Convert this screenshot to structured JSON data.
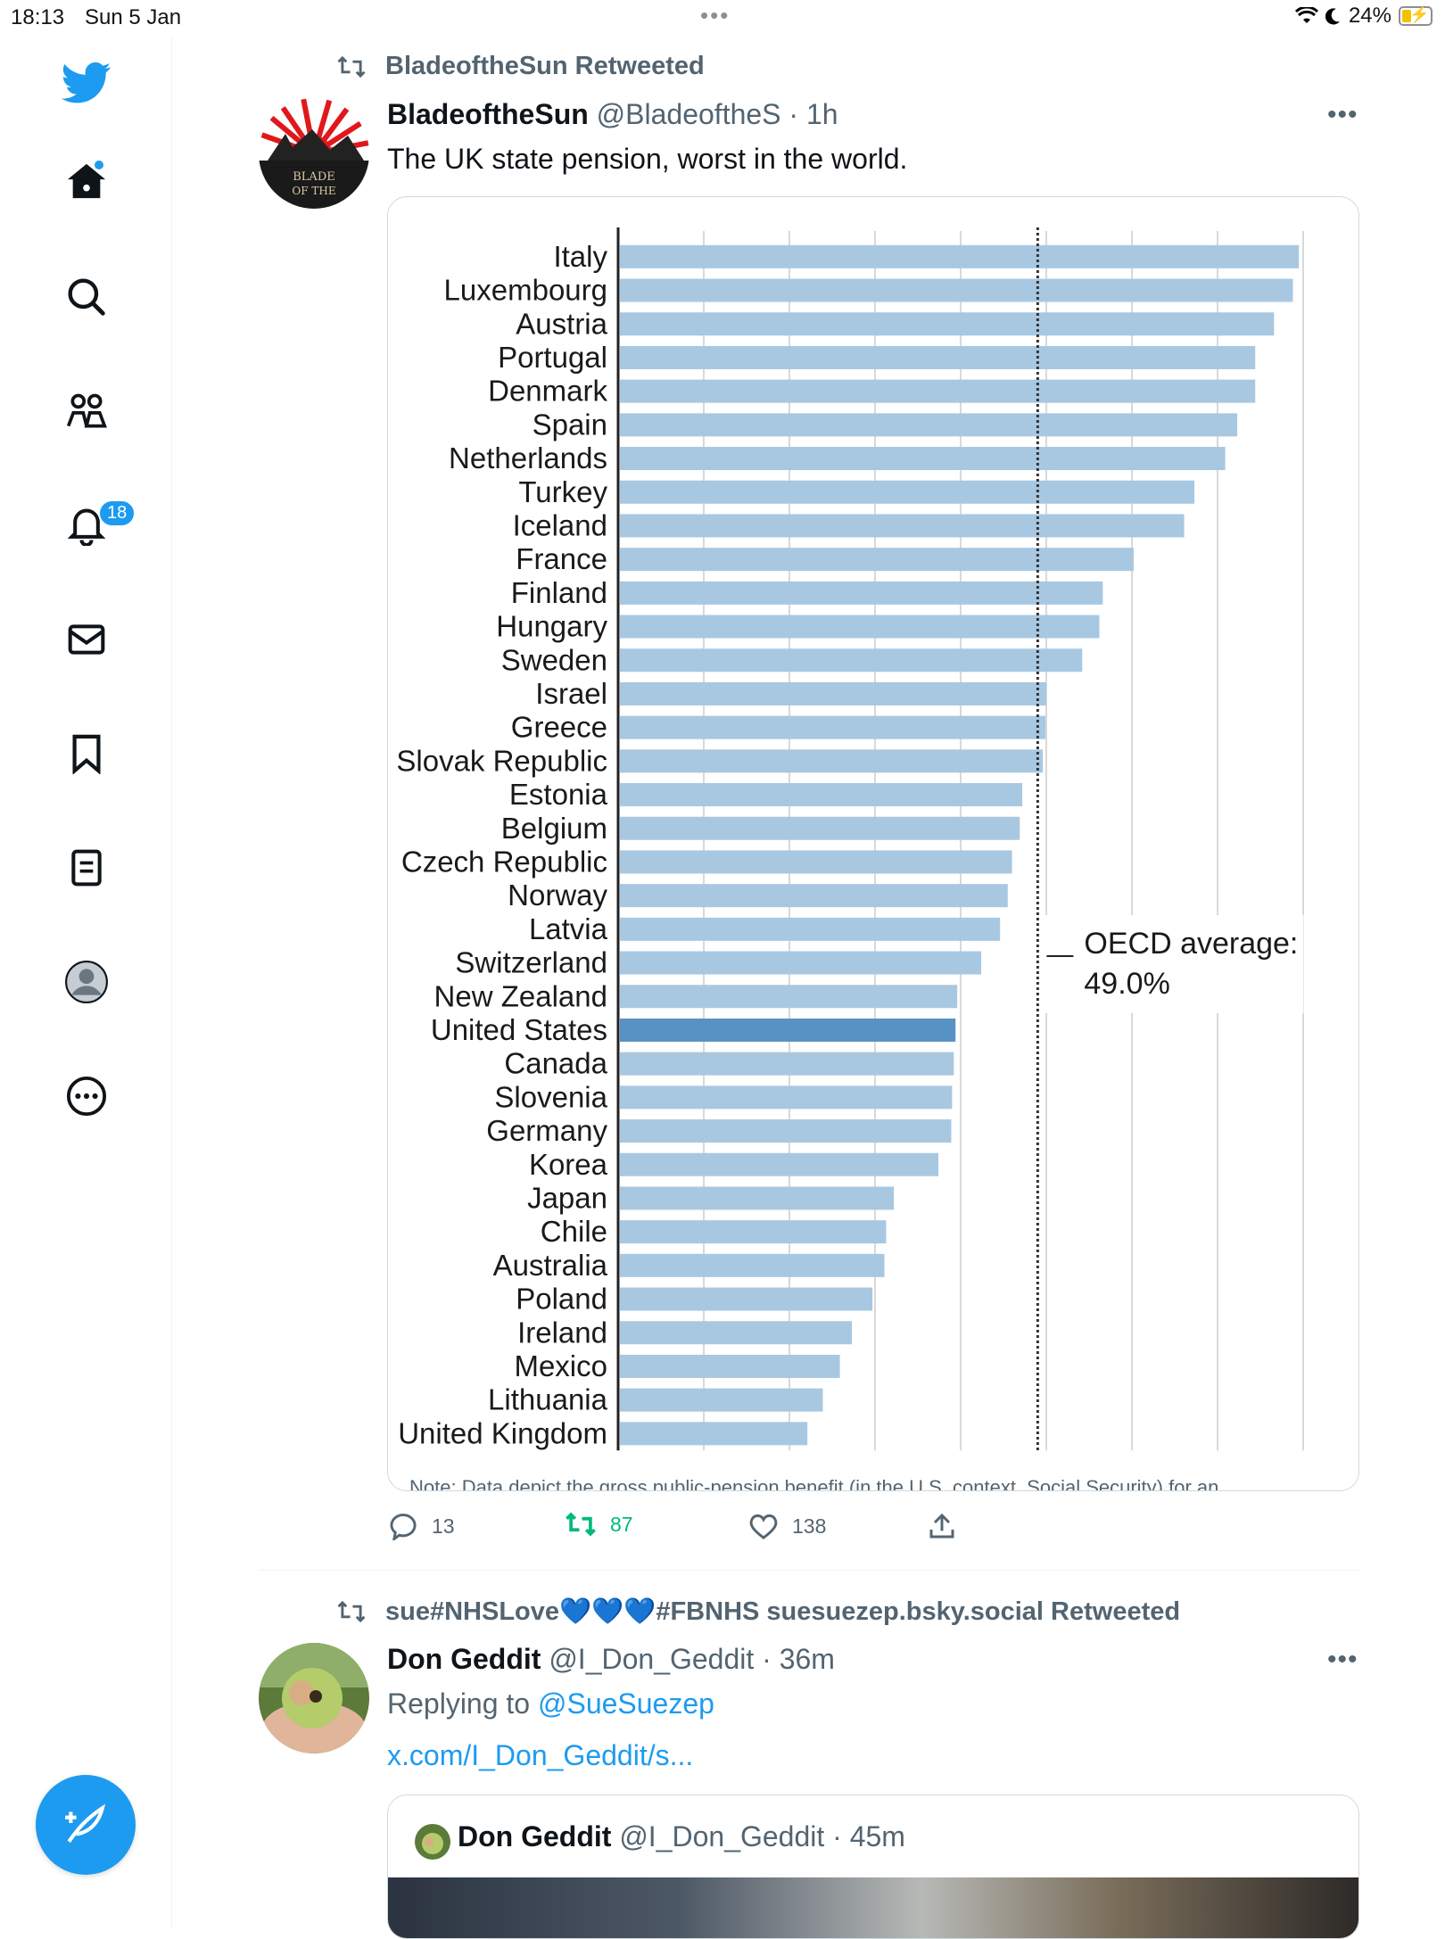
{
  "status_bar": {
    "time": "18:13",
    "date": "Sun 5 Jan",
    "battery": "24%",
    "battery_level": 0.24
  },
  "sidebar": {
    "notifications_badge": "18",
    "items": [
      "twitter-logo",
      "home",
      "explore",
      "communities",
      "notifications",
      "messages",
      "bookmarks",
      "lists",
      "profile",
      "more"
    ]
  },
  "tweet1": {
    "retweeted_by": "BladeoftheSun Retweeted",
    "author_name": "BladeoftheSun",
    "author_handle": "@BladeoftheS",
    "time": "· 1h",
    "text": "The UK state pension, worst in the world.",
    "more": "•••",
    "stats": {
      "replies": "13",
      "retweets": "87",
      "likes": "138"
    }
  },
  "chart_data": {
    "type": "bar",
    "orientation": "horizontal",
    "categories": [
      "Italy",
      "Luxembourg",
      "Austria",
      "Portugal",
      "Denmark",
      "Spain",
      "Netherlands",
      "Turkey",
      "Iceland",
      "France",
      "Finland",
      "Hungary",
      "Sweden",
      "Israel",
      "Greece",
      "Slovak Republic",
      "Estonia",
      "Belgium",
      "Czech Republic",
      "Norway",
      "Latvia",
      "Switzerland",
      "New Zealand",
      "United States",
      "Canada",
      "Slovenia",
      "Germany",
      "Korea",
      "Japan",
      "Chile",
      "Australia",
      "Poland",
      "Ireland",
      "Mexico",
      "Lithuania",
      "United Kingdom"
    ],
    "values": [
      79.5,
      78.8,
      76.6,
      74.4,
      74.4,
      72.3,
      70.9,
      67.3,
      66.1,
      60.2,
      56.6,
      56.2,
      54.2,
      50.0,
      49.9,
      49.6,
      47.2,
      46.9,
      46.0,
      45.5,
      44.6,
      42.4,
      39.6,
      39.4,
      39.2,
      39.0,
      38.9,
      37.4,
      32.2,
      31.3,
      31.1,
      29.7,
      27.3,
      25.9,
      23.9,
      22.1
    ],
    "highlight": "United States",
    "reference_line": {
      "value": 49.0,
      "label": "OECD average:",
      "value_label": "49.0%"
    },
    "xlim": [
      0,
      80
    ],
    "bar_color": "#a8c8e2",
    "highlight_color": "#5891c3",
    "note": "Note: Data depict the gross public-pension benefit (in the U.S. context, Social Security) for an"
  },
  "tweet2": {
    "retweeted_by": "sue#NHSLove💙💙💙#FBNHS suesuezep.bsky.social Retweeted",
    "author_name": "Don Geddit",
    "author_handle": "@I_Don_Geddit",
    "time": "· 36m",
    "replying_prefix": "Replying to ",
    "replying_to": "@SueSuezep",
    "link": "x.com/I_Don_Geddit/s...",
    "more": "•••",
    "quote": {
      "author_name": "Don Geddit",
      "author_handle": "@I_Don_Geddit",
      "time": "· 45m"
    }
  },
  "colors": {
    "accent": "#1d9bf0",
    "retweet_green": "#00ba7c",
    "secondary_text": "#536471"
  }
}
